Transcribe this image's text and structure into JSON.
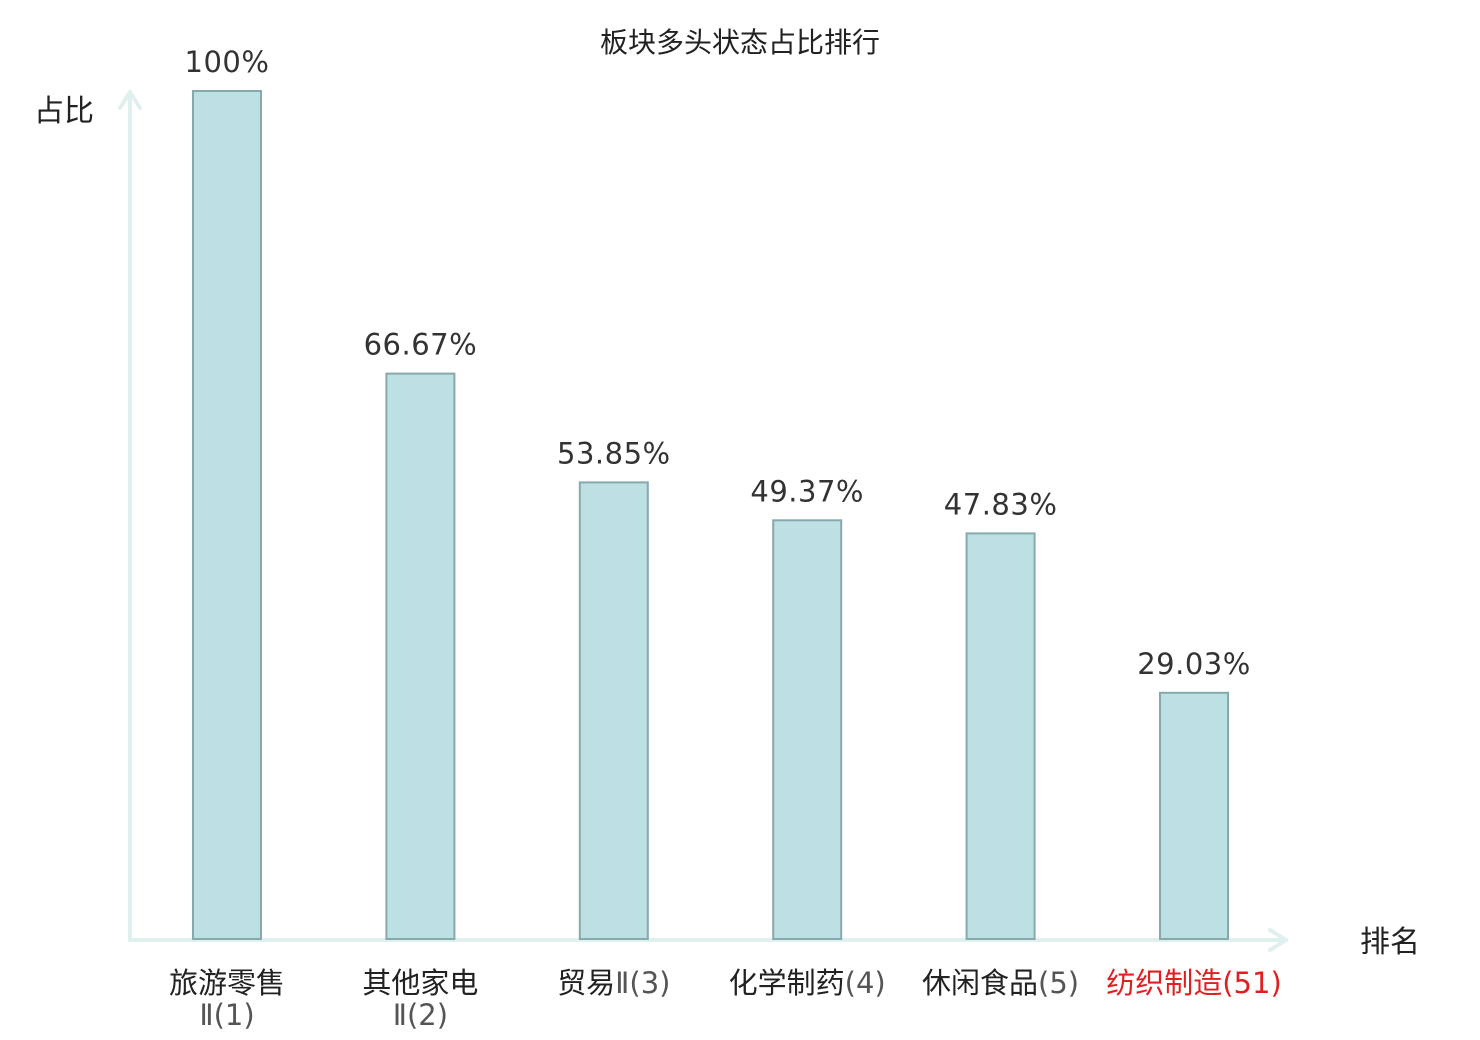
{
  "chart_data": {
    "type": "bar",
    "title": "板块多头状态占比排行",
    "xlabel": "排名",
    "ylabel": "占比",
    "ylim": [
      0,
      100
    ],
    "grid": false,
    "legend": "none",
    "categories": [
      {
        "name": "旅游零售",
        "suffix": "Ⅱ(1)",
        "wrap": true,
        "highlight": false
      },
      {
        "name": "其他家电",
        "suffix": "Ⅱ(2)",
        "wrap": true,
        "highlight": false
      },
      {
        "name": "贸易",
        "suffix": "Ⅱ(3)",
        "wrap": false,
        "highlight": false
      },
      {
        "name": "化学制药",
        "suffix": "(4)",
        "wrap": false,
        "highlight": false
      },
      {
        "name": "休闲食品",
        "suffix": "(5)",
        "wrap": false,
        "highlight": false
      },
      {
        "name": "纺织制造",
        "suffix": "(51)",
        "wrap": false,
        "highlight": true
      }
    ],
    "values": [
      100,
      66.67,
      53.85,
      49.37,
      47.83,
      29.03
    ],
    "data_labels": [
      "100%",
      "66.67%",
      "53.85%",
      "49.37%",
      "47.83%",
      "29.03%"
    ],
    "colors": {
      "bar_fill": "#bde0e3",
      "bar_stroke": "#86a9ad",
      "axis": "#dff0ee",
      "highlight_text": "#e02020"
    }
  }
}
